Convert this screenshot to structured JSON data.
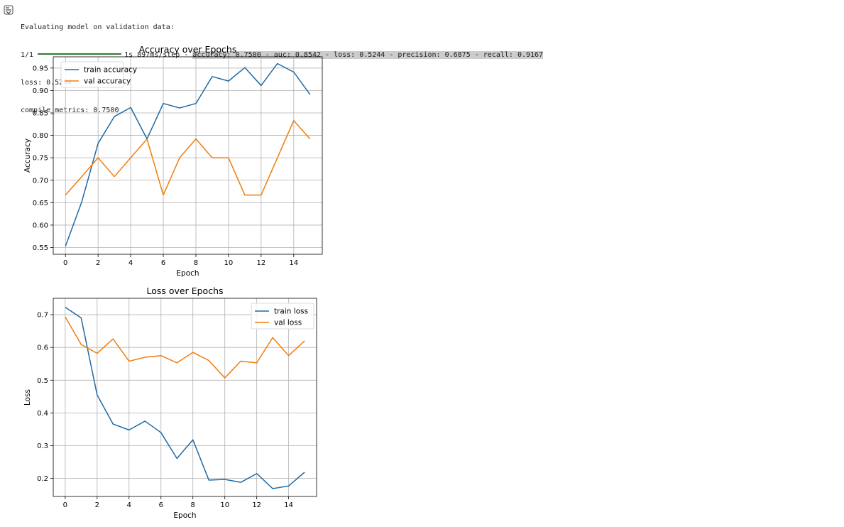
{
  "console": {
    "header": "Evaluating model on validation data:",
    "step": "1/1",
    "timing": "1s 897ms/step - ",
    "metrics": "accuracy: 0.7500 - auc: 0.8542 - loss: 0.5244 - precision: 0.6875 - recall: 0.9167",
    "loss_line": "loss: 0.5244",
    "compile_line": "compile_metrics: 0.7500",
    "progress": 1.0
  },
  "colors": {
    "series1": "#1f6aa5",
    "series2": "#f07d0b",
    "grid": "#b0b0b0",
    "progress": "#2e7d32"
  },
  "chart_data": [
    {
      "type": "line",
      "title": "Accuracy over Epochs",
      "xlabel": "Epoch",
      "ylabel": "Accuracy",
      "xlim": [
        -0.75,
        15.75
      ],
      "ylim": [
        0.535,
        0.975
      ],
      "xticks": [
        0,
        2,
        4,
        6,
        8,
        10,
        12,
        14
      ],
      "yticks": [
        0.55,
        0.6,
        0.65,
        0.7,
        0.75,
        0.8,
        0.85,
        0.9,
        0.95
      ],
      "ytick_labels": [
        "0.55",
        "0.60",
        "0.65",
        "0.70",
        "0.75",
        "0.80",
        "0.85",
        "0.90",
        "0.95"
      ],
      "grid": true,
      "legend": "upper left",
      "x": [
        0,
        1,
        2,
        3,
        4,
        5,
        6,
        7,
        8,
        9,
        10,
        11,
        12,
        13,
        14,
        15
      ],
      "series": [
        {
          "name": "train accuracy",
          "values": [
            0.553,
            0.652,
            0.782,
            0.842,
            0.862,
            0.792,
            0.871,
            0.861,
            0.871,
            0.931,
            0.921,
            0.951,
            0.911,
            0.96,
            0.941,
            0.891
          ]
        },
        {
          "name": "val accuracy",
          "values": [
            0.667,
            0.708,
            0.75,
            0.708,
            0.75,
            0.792,
            0.667,
            0.75,
            0.792,
            0.75,
            0.75,
            0.667,
            0.667,
            0.75,
            0.833,
            0.792
          ]
        }
      ]
    },
    {
      "type": "line",
      "title": "Loss over Epochs",
      "xlabel": "Epoch",
      "ylabel": "Loss",
      "xlim": [
        -0.75,
        15.75
      ],
      "ylim": [
        0.145,
        0.75
      ],
      "xticks": [
        0,
        2,
        4,
        6,
        8,
        10,
        12,
        14
      ],
      "yticks": [
        0.2,
        0.3,
        0.4,
        0.5,
        0.6,
        0.7
      ],
      "ytick_labels": [
        "0.2",
        "0.3",
        "0.4",
        "0.5",
        "0.6",
        "0.7"
      ],
      "grid": true,
      "legend": "upper right",
      "x": [
        0,
        1,
        2,
        3,
        4,
        5,
        6,
        7,
        8,
        9,
        10,
        11,
        12,
        13,
        14,
        15
      ],
      "series": [
        {
          "name": "train loss",
          "values": [
            0.723,
            0.69,
            0.455,
            0.366,
            0.348,
            0.375,
            0.34,
            0.261,
            0.318,
            0.195,
            0.197,
            0.188,
            0.215,
            0.169,
            0.177,
            0.219
          ]
        },
        {
          "name": "val loss",
          "values": [
            0.693,
            0.609,
            0.582,
            0.626,
            0.558,
            0.57,
            0.575,
            0.553,
            0.585,
            0.56,
            0.507,
            0.558,
            0.553,
            0.63,
            0.575,
            0.62
          ]
        }
      ]
    }
  ]
}
